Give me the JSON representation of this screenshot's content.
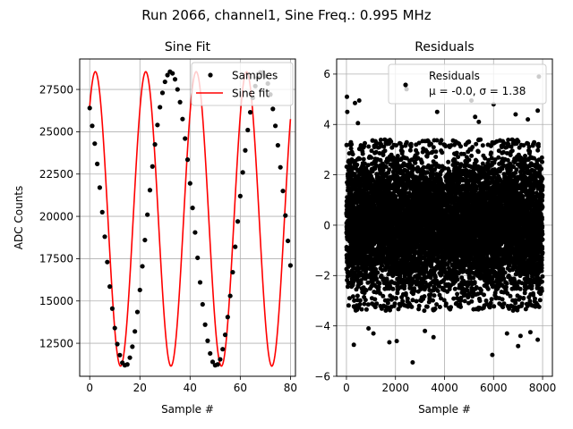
{
  "figure": {
    "suptitle": "Run 2066, channel1, Sine Freq.: 0.995 MHz"
  },
  "chart_data": [
    {
      "type": "line",
      "title": "Sine Fit",
      "xlabel": "Sample #",
      "ylabel": "ADC Counts",
      "xlim": [
        -4,
        82
      ],
      "ylim": [
        10550,
        29300
      ],
      "xticks": [
        0,
        20,
        40,
        60,
        80
      ],
      "yticks": [
        12500,
        15000,
        17500,
        20000,
        22500,
        25000,
        27500
      ],
      "xtick_labels": [
        "0",
        "20",
        "40",
        "60",
        "80"
      ],
      "ytick_labels": [
        "12500",
        "15000",
        "17500",
        "20000",
        "22500",
        "25000",
        "27500"
      ],
      "grid": true,
      "legend_position": "top-right",
      "series": [
        {
          "name": "Samples",
          "style": "points",
          "color": "#000000",
          "x": [
            0,
            1,
            2,
            3,
            4,
            5,
            6,
            7,
            8,
            9,
            10,
            11,
            12,
            13,
            14,
            15,
            16,
            17,
            18,
            19,
            20,
            21,
            22,
            23,
            24,
            25,
            26,
            27,
            28,
            29,
            30,
            31,
            32,
            33,
            34,
            35,
            36,
            37,
            38,
            39,
            40,
            41,
            42,
            43,
            44,
            45,
            46,
            47,
            48,
            49,
            50,
            51,
            52,
            53,
            54,
            55,
            56,
            57,
            58,
            59,
            60,
            61,
            62,
            63,
            64,
            65,
            66,
            67,
            68,
            69,
            70,
            71,
            72,
            73,
            74,
            75,
            76,
            77,
            78,
            79,
            80
          ],
          "y": [
            26400,
            25350,
            24300,
            23100,
            21700,
            20250,
            18800,
            17300,
            15850,
            14550,
            13400,
            12450,
            11800,
            11350,
            11200,
            11250,
            11650,
            12300,
            13200,
            14350,
            15650,
            17050,
            18600,
            20100,
            21550,
            22950,
            24250,
            25400,
            26450,
            27300,
            27950,
            28350,
            28550,
            28450,
            28100,
            27500,
            26750,
            25750,
            24600,
            23350,
            21950,
            20500,
            19050,
            17550,
            16100,
            14800,
            13600,
            12650,
            11900,
            11400,
            11200,
            11250,
            11550,
            12150,
            13000,
            14050,
            15300,
            16700,
            18200,
            19700,
            21200,
            22600,
            23900,
            25100,
            26150,
            27000,
            27700,
            28200,
            28500,
            28500,
            28300,
            27850,
            27200,
            26350,
            25350,
            24200,
            22900,
            21500,
            20050,
            18550,
            17100
          ]
        },
        {
          "name": "Sine fit",
          "style": "line",
          "color": "#ff0000",
          "model": "y = 19850 + 8700 * sin(2*pi*x/20.1 + 0.87)"
        }
      ]
    },
    {
      "type": "scatter",
      "title": "Residuals",
      "xlabel": "Sample #",
      "ylabel": "",
      "xlim": [
        -400,
        8400
      ],
      "ylim": [
        -6,
        6.6
      ],
      "xticks": [
        0,
        2000,
        4000,
        6000,
        8000
      ],
      "yticks": [
        -6,
        -4,
        -2,
        0,
        2,
        4,
        6
      ],
      "xtick_labels": [
        "0",
        "2000",
        "4000",
        "6000",
        "8000"
      ],
      "ytick_labels": [
        "−6",
        "−4",
        "−2",
        "0",
        "2",
        "4",
        "6"
      ],
      "grid": true,
      "legend_position": "top-right",
      "n_points": 8000,
      "mean": -0.0,
      "std": 1.38,
      "series": [
        {
          "name": "Residuals",
          "stats_label": "μ = -0.0, σ = 1.38",
          "color": "#000000",
          "outliers": [
            {
              "x": 20,
              "y": 5.1
            },
            {
              "x": 35,
              "y": 4.5
            },
            {
              "x": 350,
              "y": 4.85
            },
            {
              "x": 520,
              "y": 4.95
            },
            {
              "x": 470,
              "y": 4.05
            },
            {
              "x": 2450,
              "y": 5.4
            },
            {
              "x": 5100,
              "y": 4.95
            },
            {
              "x": 5400,
              "y": 4.1
            },
            {
              "x": 5250,
              "y": 4.3
            },
            {
              "x": 6000,
              "y": 4.8
            },
            {
              "x": 6900,
              "y": 4.4
            },
            {
              "x": 7850,
              "y": 5.9
            },
            {
              "x": 7800,
              "y": 4.55
            },
            {
              "x": 3700,
              "y": 4.5
            },
            {
              "x": 7400,
              "y": 4.2
            },
            {
              "x": 300,
              "y": -4.75
            },
            {
              "x": 1100,
              "y": -4.3
            },
            {
              "x": 1750,
              "y": -4.65
            },
            {
              "x": 2050,
              "y": -4.6
            },
            {
              "x": 2700,
              "y": -5.45
            },
            {
              "x": 3550,
              "y": -4.45
            },
            {
              "x": 3200,
              "y": -4.2
            },
            {
              "x": 5950,
              "y": -5.15
            },
            {
              "x": 6550,
              "y": -4.3
            },
            {
              "x": 7000,
              "y": -4.8
            },
            {
              "x": 7100,
              "y": -4.4
            },
            {
              "x": 7800,
              "y": -4.55
            },
            {
              "x": 7500,
              "y": -4.25
            },
            {
              "x": 900,
              "y": -4.1
            }
          ]
        }
      ]
    }
  ]
}
